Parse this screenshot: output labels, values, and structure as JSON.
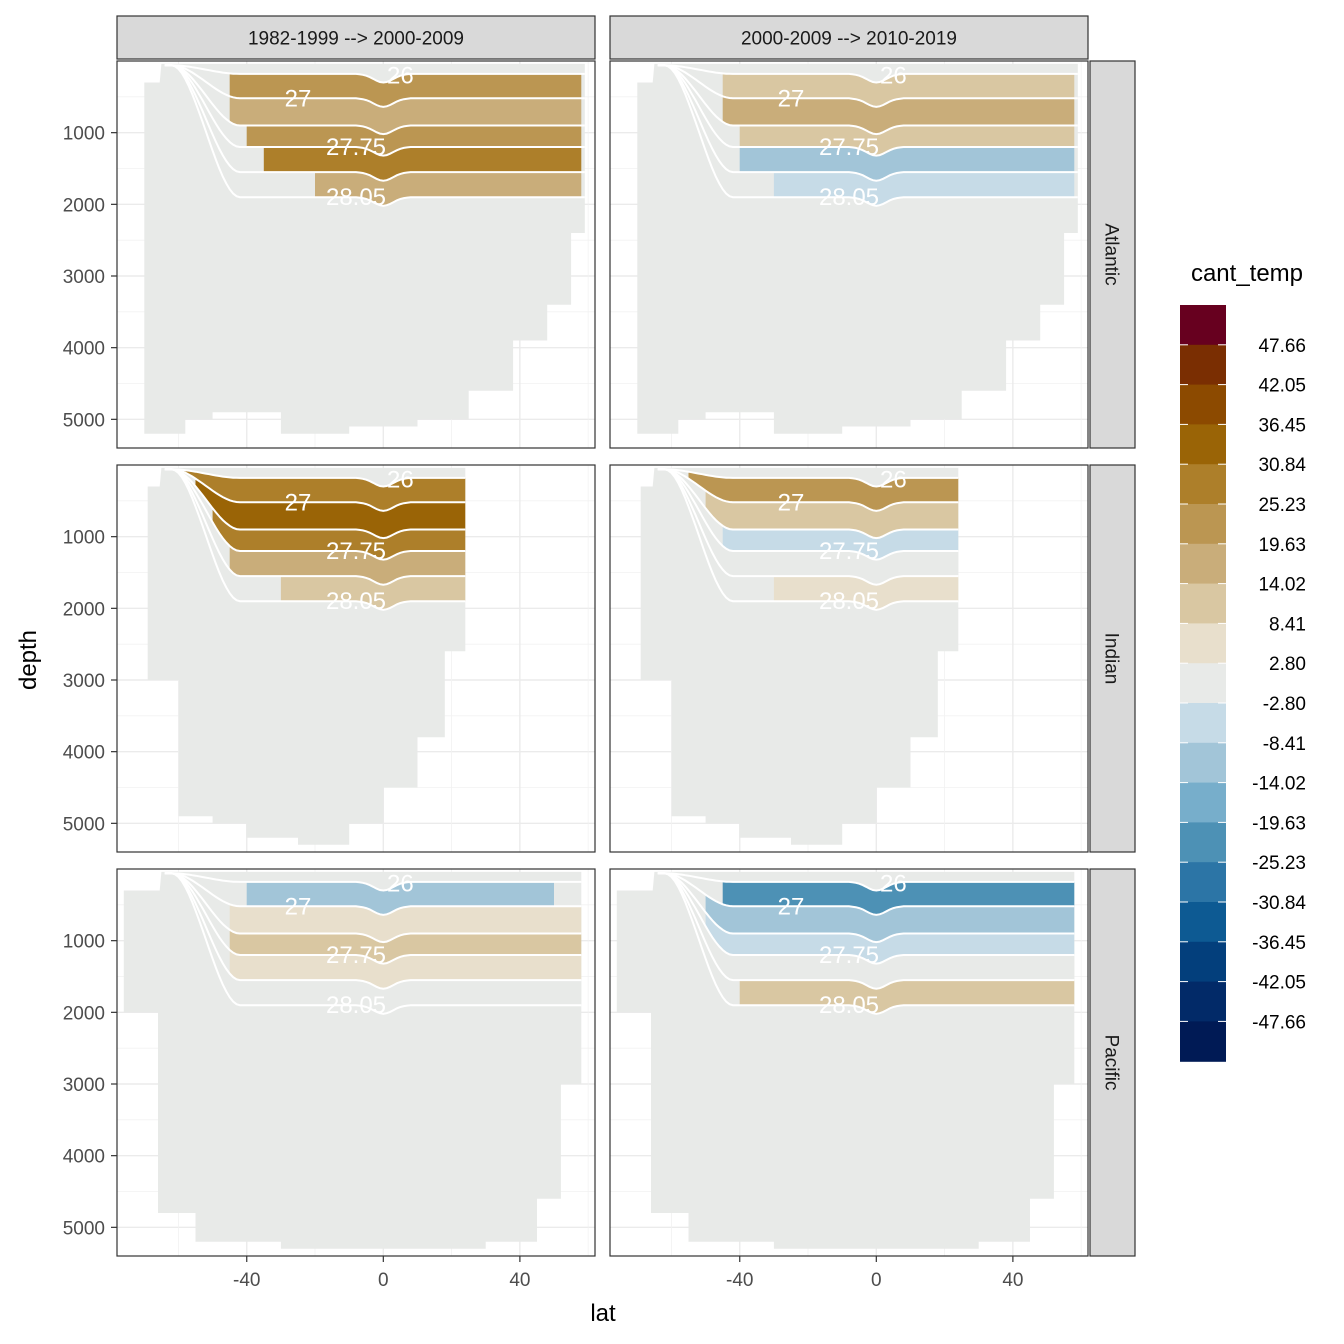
{
  "chart_data": {
    "type": "heatmap",
    "description_kind": "faceted filled-contour sections",
    "xlabel": "lat",
    "ylabel": "depth",
    "x_ticks": [
      -40,
      0,
      40
    ],
    "y_ticks": [
      1000,
      2000,
      3000,
      4000,
      5000
    ],
    "xlim": [
      -78,
      62
    ],
    "ylim": [
      5400,
      0
    ],
    "column_facets": [
      "1982-1999 --> 2000-2009",
      "2000-2009 --> 2010-2019"
    ],
    "row_facets": [
      "Atlantic",
      "Indian",
      "Pacific"
    ],
    "legend": {
      "title": "cant_temp",
      "breaks": [
        "47.66",
        "42.05",
        "36.45",
        "30.84",
        "25.23",
        "19.63",
        "14.02",
        "8.41",
        "2.80",
        "-2.80",
        "-8.41",
        "-14.02",
        "-19.63",
        "-25.23",
        "-30.84",
        "-36.45",
        "-42.05",
        "-47.66"
      ],
      "colors": [
        "#67001f",
        "#7a2e02",
        "#8c4a00",
        "#9a6406",
        "#ad7f2a",
        "#bb9652",
        "#c9ad7a",
        "#d9c7a2",
        "#e8dfcc",
        "#e8eae8",
        "#c6dbe7",
        "#a2c5d8",
        "#77aecb",
        "#4d91b5",
        "#2c75a6",
        "#0d5a93",
        "#033f7c",
        "#022a68",
        "#001a55"
      ]
    },
    "isopycnal_labels": [
      "26",
      "27",
      "27.75",
      "28.05"
    ],
    "panels": [
      {
        "row": "Atlantic",
        "col": "1982-1999 --> 2000-2009",
        "labels": [
          "26",
          "27",
          "27.75",
          "28.05"
        ]
      },
      {
        "row": "Atlantic",
        "col": "2000-2009 --> 2010-2019",
        "labels": [
          "26",
          "27",
          "27.75",
          "28.05"
        ]
      },
      {
        "row": "Indian",
        "col": "1982-1999 --> 2000-2009",
        "labels": [
          "26",
          "27",
          "27.75",
          "28.05"
        ]
      },
      {
        "row": "Indian",
        "col": "2000-2009 --> 2010-2019",
        "labels": [
          "26",
          "27",
          "27.75",
          "28.05"
        ]
      },
      {
        "row": "Pacific",
        "col": "1982-1999 --> 2000-2009",
        "labels": [
          "26",
          "27",
          "27.75",
          "28.05"
        ]
      },
      {
        "row": "Pacific",
        "col": "2000-2009 --> 2010-2019",
        "labels": [
          "26",
          "27",
          "27.75",
          "28.05"
        ]
      }
    ]
  }
}
